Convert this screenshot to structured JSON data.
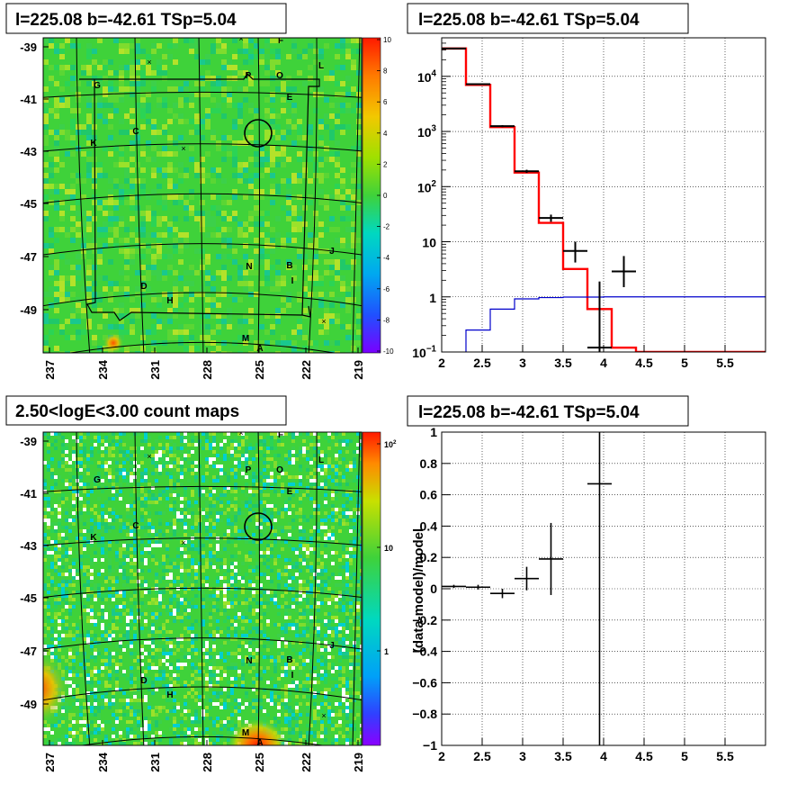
{
  "panels": {
    "tl_title": "l=225.08 b=-42.61 TSp=5.04",
    "tr_title": "l=225.08 b=-42.61 TSp=5.04",
    "bl_title": "2.50<logE<3.00 count maps",
    "br_title": "l=225.08 b=-42.61 TSp=5.04",
    "br_ylabel": "(data-model)/model"
  },
  "colors": {
    "data": "#000000",
    "model": "#ff0000",
    "blue": "#0000cc",
    "map_bg": "#3fd23a"
  },
  "chart_data": [
    {
      "type": "heatmap",
      "panel": "top-left",
      "title": "l=225.08 b=-42.61 TSp=5.04",
      "x_ticks": [
        "237",
        "234",
        "231",
        "228",
        "225",
        "222",
        "219"
      ],
      "y_ticks": [
        "-39",
        "-41",
        "-43",
        "-45",
        "-47",
        "-49"
      ],
      "colorbar_ticks": [
        "10",
        "8",
        "6",
        "4",
        "2",
        "0",
        "-2",
        "-4",
        "-6",
        "-8",
        "-10"
      ],
      "source_labels": [
        "F",
        "P",
        "O",
        "L",
        "G",
        "E",
        "C",
        "K",
        "J",
        "N",
        "B",
        "I",
        "D",
        "H",
        "M",
        "A"
      ]
    },
    {
      "type": "line",
      "panel": "top-right",
      "title": "l=225.08 b=-42.61 TSp=5.04",
      "log_y": true,
      "xlim": [
        2,
        6
      ],
      "ylim": [
        0.1,
        50000
      ],
      "x_ticks": [
        "2",
        "2.5",
        "3",
        "3.5",
        "4",
        "4.5",
        "5",
        "5.5"
      ],
      "y_ticks": [
        {
          "base": "10",
          "exp": "4"
        },
        {
          "base": "10",
          "exp": "3"
        },
        {
          "base": "10",
          "exp": "2"
        },
        {
          "base": "10",
          "exp": ""
        },
        {
          "base": "1",
          "exp": ""
        },
        {
          "base": "10",
          "exp": "−1"
        }
      ],
      "series": [
        {
          "edges": [
            2.0,
            2.3,
            2.6,
            2.9,
            3.2,
            3.5,
            3.8,
            4.1,
            4.4,
            6.0
          ],
          "values": [
            32000,
            7000,
            1200,
            180,
            22,
            3.2,
            0.6,
            0.12,
            0.1
          ]
        },
        {
          "edges": [
            2.3,
            2.6,
            2.9,
            3.2,
            3.5,
            4.0,
            6.0
          ],
          "values": [
            0.25,
            0.6,
            0.92,
            0.97,
            0.99,
            1.0
          ]
        },
        {
          "x": [
            2.15,
            2.45,
            2.75,
            3.05,
            3.35,
            3.65,
            3.95,
            4.25
          ],
          "y": [
            32000,
            7200,
            1250,
            190,
            27,
            6.8,
            0.12,
            2.9
          ],
          "xerr": 0.15,
          "yerr": [
            [
              31000,
              33000
            ],
            [
              7000,
              7400
            ],
            [
              1200,
              1300
            ],
            [
              178,
              202
            ],
            [
              23,
              31
            ],
            [
              4.2,
              10
            ],
            [
              0.1,
              1.9
            ],
            [
              1.5,
              5.5
            ]
          ]
        }
      ]
    },
    {
      "type": "heatmap",
      "panel": "bottom-left",
      "title": "2.50<logE<3.00 count maps",
      "x_ticks": [
        "237",
        "234",
        "231",
        "228",
        "225",
        "222",
        "219"
      ],
      "y_ticks": [
        "-39",
        "-41",
        "-43",
        "-45",
        "-47",
        "-49"
      ],
      "colorbar_ticks": [
        {
          "base": "10",
          "exp": "2"
        },
        {
          "base": "10",
          "exp": ""
        },
        {
          "base": "1",
          "exp": ""
        }
      ],
      "source_labels": [
        "F",
        "P",
        "O",
        "L",
        "G",
        "E",
        "C",
        "K",
        "J",
        "N",
        "B",
        "I",
        "D",
        "H",
        "M",
        "A"
      ]
    },
    {
      "type": "scatter",
      "panel": "bottom-right",
      "title": "l=225.08 b=-42.61 TSp=5.04",
      "ylabel": "(data-model)/model",
      "xlim": [
        2,
        6
      ],
      "ylim": [
        -1,
        1
      ],
      "x_ticks": [
        "2",
        "2.5",
        "3",
        "3.5",
        "4",
        "4.5",
        "5",
        "5.5"
      ],
      "y_ticks": [
        "1",
        "0.8",
        "0.6",
        "0.4",
        "0.2",
        "0",
        "−0.2",
        "−0.4",
        "−0.6",
        "−0.8",
        "−1"
      ],
      "points": [
        {
          "x": 2.15,
          "y": 0.015,
          "xerr": 0.15,
          "ylo": 0.005,
          "yhi": 0.025
        },
        {
          "x": 2.45,
          "y": 0.01,
          "xerr": 0.15,
          "ylo": -0.005,
          "yhi": 0.025
        },
        {
          "x": 2.75,
          "y": -0.03,
          "xerr": 0.15,
          "ylo": -0.06,
          "yhi": 0.0
        },
        {
          "x": 3.05,
          "y": 0.065,
          "xerr": 0.15,
          "ylo": -0.01,
          "yhi": 0.14
        },
        {
          "x": 3.35,
          "y": 0.19,
          "xerr": 0.15,
          "ylo": -0.04,
          "yhi": 0.42
        },
        {
          "x": 3.95,
          "y": 0.67,
          "xerr": 0.15,
          "ylo": -1.0,
          "yhi": 1.0
        }
      ]
    }
  ]
}
